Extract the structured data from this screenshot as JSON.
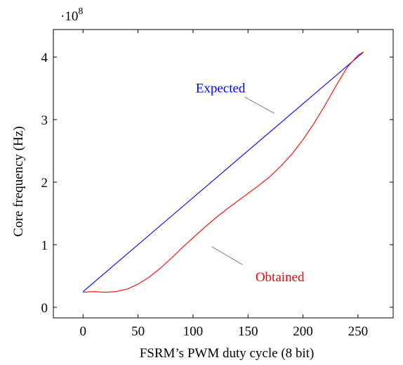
{
  "chart_data": {
    "type": "line",
    "title": "",
    "xlabel": "FSRM’s PWM duty cycle (8 bit)",
    "ylabel": "Core frequency (Hz)",
    "y_multiplier": {
      "base": "·10",
      "exponent": "8"
    },
    "xlim": [
      -27,
      282
    ],
    "ylim": [
      -0.17,
      4.44
    ],
    "x_ticks": [
      0,
      50,
      100,
      150,
      200,
      250
    ],
    "x_tick_labels": [
      "0",
      "50",
      "100",
      "150",
      "200",
      "250"
    ],
    "y_ticks": [
      0,
      1,
      2,
      3,
      4
    ],
    "y_tick_labels": [
      "0",
      "1",
      "2",
      "3",
      "4"
    ],
    "grid": false,
    "legend": "none",
    "series": [
      {
        "key": "expected",
        "color": "#0000ff",
        "x": [
          0,
          255
        ],
        "y": [
          0.25,
          4.08
        ]
      },
      {
        "key": "obtained",
        "color": "#ff0000",
        "x": [
          0,
          10,
          20,
          30,
          40,
          50,
          60,
          70,
          80,
          90,
          100,
          110,
          120,
          130,
          140,
          150,
          160,
          170,
          180,
          190,
          200,
          210,
          220,
          230,
          240,
          250,
          255
        ],
        "y": [
          0.24,
          0.25,
          0.24,
          0.25,
          0.29,
          0.37,
          0.48,
          0.62,
          0.78,
          0.95,
          1.11,
          1.27,
          1.42,
          1.56,
          1.69,
          1.82,
          1.95,
          2.09,
          2.26,
          2.45,
          2.68,
          2.94,
          3.23,
          3.54,
          3.83,
          4.03,
          4.08
        ]
      }
    ],
    "annotations": [
      {
        "key": "expected",
        "text": "Expected",
        "color": "#0000ff",
        "text_at": [
          125,
          3.5
        ],
        "line_from": [
          147,
          3.36
        ],
        "line_to": [
          174,
          3.1
        ]
      },
      {
        "key": "obtained",
        "text": "Obtained",
        "color": "#ff0000",
        "text_at": [
          179,
          0.48
        ],
        "line_from": [
          145,
          0.68
        ],
        "line_to": [
          117,
          0.97
        ]
      }
    ]
  }
}
